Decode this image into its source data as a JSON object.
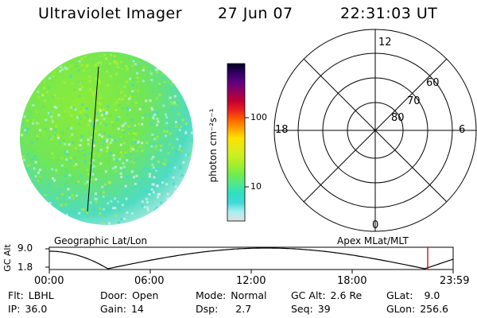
{
  "header": {
    "instrument": "Ultraviolet Imager",
    "date": "27 Jun 07",
    "time": "22:31:03 UT"
  },
  "colorbar": {
    "label": "photon cm⁻²s⁻¹",
    "ticks": [
      "100",
      "10"
    ],
    "colors": [
      "#e0e0e0",
      "#a6f0f0",
      "#40d8d8",
      "#30e0c0",
      "#50e890",
      "#70ec50",
      "#a0ee30",
      "#c8f020",
      "#e8e818",
      "#ffe000",
      "#ffa000",
      "#ff6000",
      "#e82020",
      "#c00030",
      "#900060",
      "#600080",
      "#300060",
      "#000020"
    ]
  },
  "polar": {
    "lat_labels": [
      "60",
      "70",
      "80"
    ],
    "mlt_labels": {
      "top": "12",
      "bottom": "0",
      "left": "18",
      "right": "6"
    }
  },
  "timeline": {
    "left_title": "Geographic Lat/Lon",
    "right_title": "Apex MLat/MLT",
    "y_axis_label": "GC Alt",
    "y_ticks": [
      "9.0",
      "1.8"
    ],
    "x_ticks": [
      "00:00",
      "06:00",
      "12:00",
      "18:00",
      "23:59"
    ],
    "current_marker_color": "#cc0000"
  },
  "info": [
    {
      "label": "Flt:",
      "value": "LBHL"
    },
    {
      "label": "Door:",
      "value": "Open"
    },
    {
      "label": "Mode:",
      "value": "Normal"
    },
    {
      "label": "GC Alt:",
      "value": "2.6 Re"
    },
    {
      "label": "GLat:",
      "value": "9.0"
    },
    {
      "label": "IP:",
      "value": "36.0"
    },
    {
      "label": "Gain:",
      "value": "14"
    },
    {
      "label": "Dsp:",
      "value": "2.7"
    },
    {
      "label": "Seq:",
      "value": "39"
    },
    {
      "label": "GLon:",
      "value": "256.6"
    }
  ]
}
